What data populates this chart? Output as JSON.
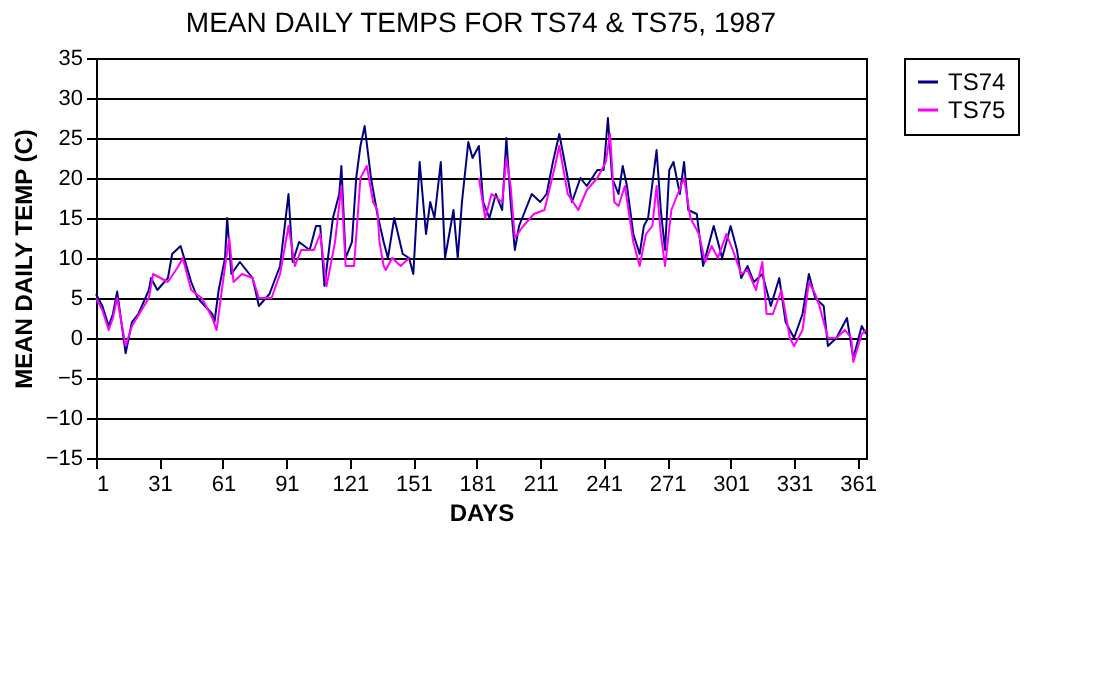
{
  "chart_data": {
    "type": "line",
    "title": "MEAN DAILY TEMPS FOR TS74 & TS75, 1987",
    "xlabel": "DAYS",
    "ylabel": "MEAN DAILY TEMP (C)",
    "xlim": [
      1,
      365
    ],
    "xticks": [
      1,
      31,
      61,
      91,
      121,
      151,
      181,
      211,
      241,
      271,
      301,
      331,
      361
    ],
    "ylim": [
      -15,
      35
    ],
    "yticks": [
      -15,
      -10,
      -5,
      0,
      5,
      10,
      15,
      20,
      25,
      30,
      35
    ],
    "grid": "y",
    "legend": "right",
    "marker": "none",
    "line_style": "solid",
    "series": [
      {
        "name": "TS74",
        "color": "#000080",
        "x": [
          1,
          4,
          7,
          9,
          11,
          15,
          18,
          21,
          26,
          27,
          30,
          35,
          37,
          41,
          46,
          49,
          56,
          57,
          59,
          62,
          63,
          65,
          69,
          72,
          75,
          78,
          83,
          88,
          92,
          94,
          97,
          102,
          105,
          107,
          109,
          113,
          116,
          117,
          119,
          122,
          124,
          126,
          128,
          131,
          134,
          137,
          139,
          142,
          146,
          149,
          151,
          154,
          157,
          159,
          161,
          164,
          166,
          170,
          172,
          174,
          177,
          179,
          182,
          184,
          187,
          190,
          193,
          195,
          197,
          199,
          201,
          204,
          207,
          211,
          214,
          217,
          220,
          224,
          226,
          230,
          233,
          238,
          241,
          243,
          245,
          248,
          250,
          252,
          255,
          258,
          260,
          262,
          266,
          268,
          270,
          272,
          274,
          277,
          279,
          281,
          285,
          288,
          291,
          293,
          297,
          301,
          304,
          306,
          309,
          312,
          316,
          320,
          324,
          327,
          331,
          335,
          338,
          341,
          345,
          347,
          351,
          356,
          359,
          363,
          365
        ],
        "values": [
          5.5,
          4,
          1.5,
          3,
          5.8,
          -1.9,
          2,
          3,
          6,
          7.5,
          6,
          7.5,
          10.5,
          11.5,
          7,
          5,
          3,
          2,
          6,
          10,
          15,
          8,
          9.5,
          8.5,
          7.5,
          4,
          5.5,
          9,
          18,
          9.5,
          12,
          11,
          14,
          14,
          6.5,
          15,
          18,
          21.5,
          10,
          12,
          20,
          24,
          26.5,
          20,
          15.5,
          12,
          10,
          15,
          10.5,
          10,
          8,
          22,
          13,
          17,
          15,
          22,
          10,
          16,
          10,
          17,
          24.5,
          22.5,
          24,
          17,
          15,
          18,
          16,
          25,
          17,
          11,
          14,
          16,
          18,
          17,
          18,
          22,
          25.5,
          20,
          17,
          20,
          19,
          21,
          21,
          27.5,
          20,
          18,
          21.5,
          19,
          13,
          10.5,
          14,
          15,
          23.5,
          16,
          11,
          21,
          22,
          18,
          22,
          16,
          15.5,
          9,
          12,
          14,
          10,
          14,
          11,
          7.5,
          9,
          7,
          8,
          4,
          7.5,
          2,
          0,
          3,
          8,
          5,
          4,
          -1,
          0,
          2.5,
          -2.5,
          1.5,
          0.5
        ]
      },
      {
        "name": "TS75",
        "color": "#ff00ff",
        "x": [
          1,
          4,
          7,
          9,
          11,
          15,
          18,
          26,
          28,
          35,
          40,
          42,
          46,
          51,
          56,
          58,
          62,
          64,
          66,
          70,
          75,
          78,
          84,
          88,
          92,
          95,
          98,
          104,
          107,
          110,
          114,
          117,
          119,
          123,
          126,
          129,
          132,
          134,
          135,
          137,
          138,
          141,
          145,
          149,
          151,
          182,
          185,
          188,
          193,
          195,
          197,
          199,
          203,
          208,
          213,
          218,
          220,
          224,
          229,
          233,
          238,
          242,
          244,
          246,
          248,
          251,
          255,
          258,
          261,
          264,
          266,
          268,
          270,
          273,
          276,
          279,
          282,
          286,
          289,
          292,
          295,
          299,
          302,
          306,
          309,
          313,
          316,
          318,
          321,
          325,
          329,
          331,
          335,
          338,
          341,
          343,
          347,
          351,
          355,
          358,
          359,
          363,
          365
        ],
        "values": [
          5,
          3.5,
          1,
          2.5,
          5,
          -1,
          1.5,
          5,
          8,
          7,
          9,
          10,
          6,
          5,
          2.5,
          1,
          9,
          12.5,
          7,
          8,
          7.5,
          5,
          5,
          8,
          14,
          9,
          11,
          11,
          13,
          6.5,
          12,
          19,
          9,
          9,
          20,
          21.5,
          17,
          16,
          12,
          9,
          8.5,
          10,
          9,
          10,
          null,
          20,
          15,
          18,
          17,
          22.5,
          19,
          12.5,
          14,
          15.5,
          16,
          21.5,
          24,
          18,
          16,
          18.5,
          20,
          22,
          25.5,
          17,
          16.5,
          19,
          12,
          9,
          13,
          14,
          19,
          13,
          9,
          16,
          18,
          20,
          15,
          13,
          9.5,
          11.5,
          10,
          13,
          11,
          8,
          8.5,
          6,
          9.5,
          3,
          3,
          6,
          0,
          -1,
          1,
          7,
          5.5,
          4,
          0,
          0,
          1,
          0,
          -3,
          0.5,
          1
        ]
      }
    ]
  }
}
